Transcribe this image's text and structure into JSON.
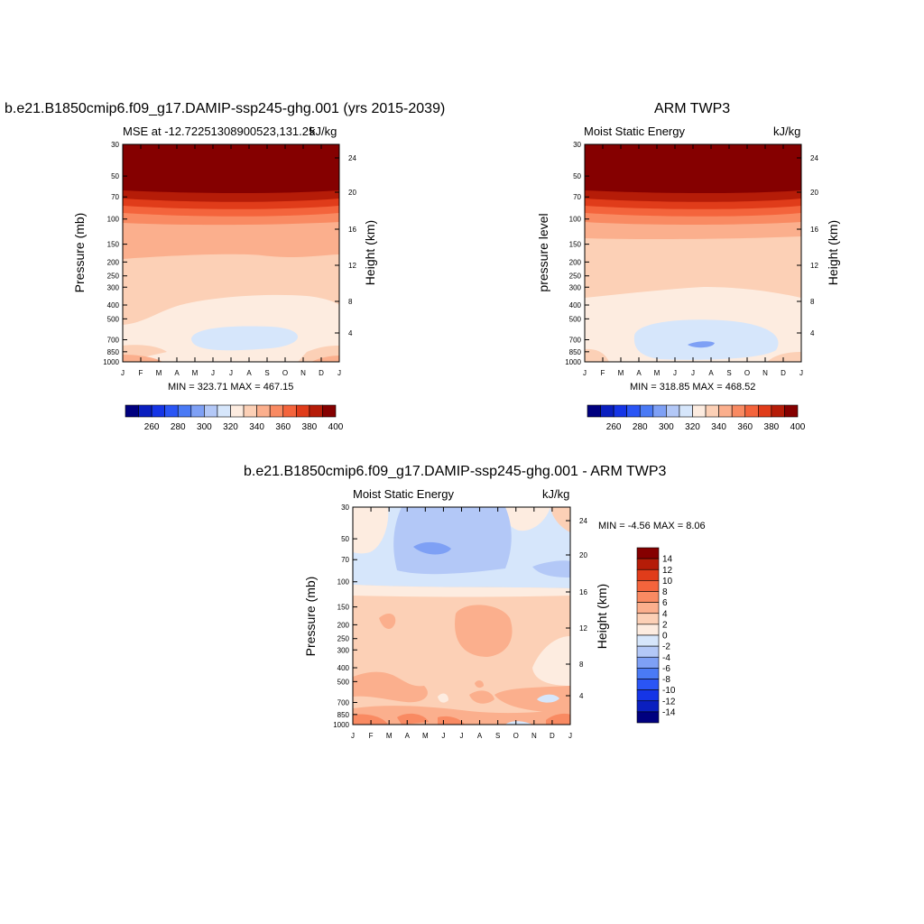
{
  "chart_data": [
    {
      "type": "heatmap",
      "title": "b.e21.B1850cmip6.f09_g17.DAMIP-ssp245-ghg.001 (yrs 2015-2039)",
      "subtitle_left": "MSE at -12.72251308900523,131.25",
      "subtitle_right": "kJ/kg",
      "ylabel": "Pressure (mb)",
      "ylabel_right": "Height (km)",
      "months": [
        "J",
        "F",
        "M",
        "A",
        "M",
        "J",
        "J",
        "A",
        "S",
        "O",
        "N",
        "D",
        "J"
      ],
      "pressure_ticks": [
        30,
        50,
        70,
        100,
        150,
        200,
        250,
        300,
        400,
        500,
        700,
        850,
        1000
      ],
      "height_ticks": [
        24,
        20,
        16,
        12,
        8,
        4
      ],
      "min_max_text": "MIN = 323.71 MAX = 467.15",
      "colorbar_labels": [
        "260",
        "280",
        "300",
        "320",
        "340",
        "360",
        "380",
        "400"
      ],
      "colors": [
        "#00007f",
        "#0a1fbf",
        "#1535e6",
        "#2a55f5",
        "#4a7af5",
        "#7ea0f5",
        "#b3c8f7",
        "#d6e6fb",
        "#fdece0",
        "#fcd0b6",
        "#fbaf8d",
        "#f98a62",
        "#f4643c",
        "#e03c1a",
        "#b51c08",
        "#850000"
      ]
    },
    {
      "type": "heatmap",
      "title": "ARM TWP3",
      "subtitle_left": "Moist Static Energy",
      "subtitle_right": "kJ/kg",
      "ylabel": "pressure level",
      "ylabel_right": "Height (km)",
      "months": [
        "J",
        "F",
        "M",
        "A",
        "M",
        "J",
        "J",
        "A",
        "S",
        "O",
        "N",
        "D",
        "J"
      ],
      "pressure_ticks": [
        30,
        50,
        70,
        100,
        150,
        200,
        250,
        300,
        400,
        500,
        700,
        850,
        1000
      ],
      "height_ticks": [
        24,
        20,
        16,
        12,
        8,
        4
      ],
      "min_max_text": "MIN = 318.85 MAX = 468.52",
      "colorbar_labels": [
        "260",
        "280",
        "300",
        "320",
        "340",
        "360",
        "380",
        "400"
      ]
    },
    {
      "type": "heatmap",
      "title": "b.e21.B1850cmip6.f09_g17.DAMIP-ssp245-ghg.001 - ARM TWP3",
      "subtitle_left": "Moist Static Energy",
      "subtitle_right": "kJ/kg",
      "ylabel": "Pressure (mb)",
      "ylabel_right": "Height (km)",
      "months": [
        "J",
        "F",
        "M",
        "A",
        "M",
        "J",
        "J",
        "A",
        "S",
        "O",
        "N",
        "D",
        "J"
      ],
      "pressure_ticks": [
        30,
        50,
        70,
        100,
        150,
        200,
        250,
        300,
        400,
        500,
        700,
        850,
        1000
      ],
      "height_ticks": [
        24,
        20,
        16,
        12,
        8,
        4
      ],
      "min_max_text": "MIN =  -4.56 MAX =   8.06",
      "colorbar_labels": [
        "14",
        "12",
        "10",
        "8",
        "6",
        "4",
        "2",
        "0",
        "-2",
        "-4",
        "-6",
        "-8",
        "-10",
        "-12",
        "-14"
      ]
    }
  ]
}
